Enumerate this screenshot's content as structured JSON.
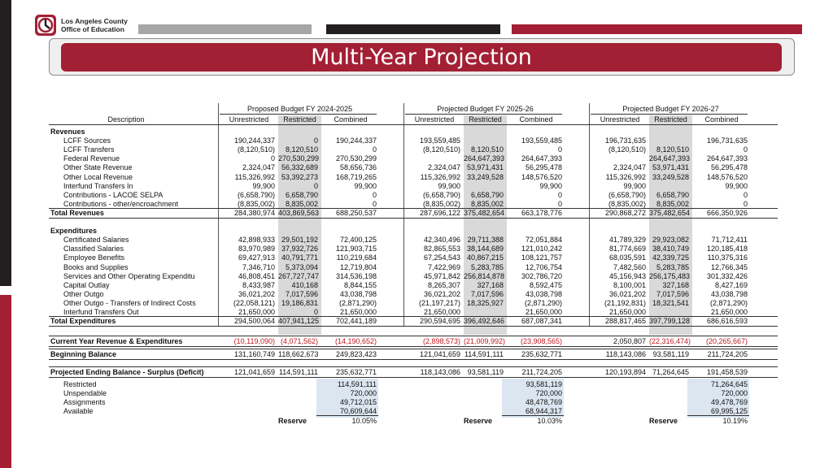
{
  "logo": {
    "line1": "Los Angeles County",
    "line2": "Office of Education"
  },
  "title": "Multi-Year Projection",
  "colors": {
    "brand_red": "#a31f34",
    "dark": "#231f20",
    "gray": "#a6a6a6",
    "restricted_shade": "#d9d9d9",
    "balance_blue": "#dce6f1",
    "negative_red": "#c0171e"
  },
  "table": {
    "desc_header": "Description",
    "groups": [
      "Proposed Budget FY 2024-2025",
      "Projected Budget FY 2025-26",
      "Projected Budget FY 2026-27"
    ],
    "subheaders": [
      "Unrestricted",
      "Restricted",
      "Combined"
    ],
    "rows": [
      {
        "label": "Revenues",
        "type": "section",
        "vals": [
          "",
          "",
          "",
          "",
          "",
          "",
          "",
          "",
          ""
        ]
      },
      {
        "label": "LCFF Sources",
        "type": "item",
        "vals": [
          "190,244,337",
          "0",
          "190,244,337",
          "193,559,485",
          "",
          "193,559,485",
          "196,731,635",
          "",
          "196,731,635"
        ]
      },
      {
        "label": "LCFF Transfers",
        "type": "item",
        "vals": [
          "(8,120,510)",
          "8,120,510",
          "0",
          "(8,120,510)",
          "8,120,510",
          "0",
          "(8,120,510)",
          "8,120,510",
          "0"
        ]
      },
      {
        "label": "Federal Revenue",
        "type": "item",
        "vals": [
          "0",
          "270,530,299",
          "270,530,299",
          "",
          "264,647,393",
          "264,647,393",
          "",
          "264,647,393",
          "264,647,393"
        ]
      },
      {
        "label": "Other State Revenue",
        "type": "item",
        "vals": [
          "2,324,047",
          "56,332,689",
          "58,656,736",
          "2,324,047",
          "53,971,431",
          "56,295,478",
          "2,324,047",
          "53,971,431",
          "56,295,478"
        ]
      },
      {
        "label": "Other Local Revenue",
        "type": "item",
        "vals": [
          "115,326,992",
          "53,392,273",
          "168,719,265",
          "115,326,992",
          "33,249,528",
          "148,576,520",
          "115,326,992",
          "33,249,528",
          "148,576,520"
        ]
      },
      {
        "label": "Interfund Transfers In",
        "type": "item",
        "vals": [
          "99,900",
          "0",
          "99,900",
          "99,900",
          "",
          "99,900",
          "99,900",
          "",
          "99,900"
        ]
      },
      {
        "label": "Contributions - LACOE SELPA",
        "type": "item",
        "vals": [
          "(6,658,790)",
          "6,658,790",
          "0",
          "(6,658,790)",
          "6,658,790",
          "0",
          "(6,658,790)",
          "6,658,790",
          "0"
        ]
      },
      {
        "label": "Contributions - other/encroachment",
        "type": "item",
        "vals": [
          "(8,835,002)",
          "8,835,002",
          "0",
          "(8,835,002)",
          "8,835,002",
          "0",
          "(8,835,002)",
          "8,835,002",
          "0"
        ]
      },
      {
        "label": "Total Revenues",
        "type": "total",
        "vals": [
          "284,380,974",
          "403,869,563",
          "688,250,537",
          "287,696,122",
          "375,482,654",
          "663,178,776",
          "290,868,272",
          "375,482,654",
          "666,350,926"
        ]
      },
      {
        "label": "",
        "type": "blank",
        "vals": [
          "",
          "",
          "",
          "",
          "",
          "",
          "",
          "",
          ""
        ]
      },
      {
        "label": "Expenditures",
        "type": "section",
        "vals": [
          "",
          "",
          "",
          "",
          "",
          "",
          "",
          "",
          ""
        ]
      },
      {
        "label": "Certificated Salaries",
        "type": "item",
        "vals": [
          "42,898,933",
          "29,501,192",
          "72,400,125",
          "42,340,496",
          "29,711,388",
          "72,051,884",
          "41,789,329",
          "29,923,082",
          "71,712,411"
        ]
      },
      {
        "label": "Classified Salaries",
        "type": "item",
        "vals": [
          "83,970,989",
          "37,932,726",
          "121,903,715",
          "82,865,553",
          "38,144,689",
          "121,010,242",
          "81,774,669",
          "38,410,749",
          "120,185,418"
        ]
      },
      {
        "label": "Employee Benefits",
        "type": "item",
        "vals": [
          "69,427,913",
          "40,791,771",
          "110,219,684",
          "67,254,543",
          "40,867,215",
          "108,121,757",
          "68,035,591",
          "42,339,725",
          "110,375,316"
        ]
      },
      {
        "label": "Books and Supplies",
        "type": "item",
        "vals": [
          "7,346,710",
          "5,373,094",
          "12,719,804",
          "7,422,969",
          "5,283,785",
          "12,706,754",
          "7,482,560",
          "5,283,785",
          "12,766,345"
        ]
      },
      {
        "label": "Services and Other Operating Expenditu",
        "type": "item",
        "vals": [
          "46,808,451",
          "267,727,747",
          "314,536,198",
          "45,971,842",
          "256,814,878",
          "302,786,720",
          "45,156,943",
          "256,175,483",
          "301,332,426"
        ]
      },
      {
        "label": "Capital Outlay",
        "type": "item",
        "vals": [
          "8,433,987",
          "410,168",
          "8,844,155",
          "8,265,307",
          "327,168",
          "8,592,475",
          "8,100,001",
          "327,168",
          "8,427,169"
        ]
      },
      {
        "label": "Other Outgo",
        "type": "item",
        "vals": [
          "36,021,202",
          "7,017,596",
          "43,038,798",
          "36,021,202",
          "7,017,596",
          "43,038,798",
          "36,021,202",
          "7,017,596",
          "43,038,798"
        ]
      },
      {
        "label": "Other Outgo - Transfers of Indirect Costs",
        "type": "item",
        "vals": [
          "(22,058,121)",
          "19,186,831",
          "(2,871,290)",
          "(21,197,217)",
          "18,325,927",
          "(2,871,290)",
          "(21,192,831)",
          "18,321,541",
          "(2,871,290)"
        ]
      },
      {
        "label": "Interfund Transfers Out",
        "type": "item",
        "vals": [
          "21,650,000",
          "0",
          "21,650,000",
          "21,650,000",
          "",
          "21,650,000",
          "21,650,000",
          "",
          "21,650,000"
        ]
      },
      {
        "label": "Total Expenditures",
        "type": "total",
        "vals": [
          "294,500,064",
          "407,941,125",
          "702,441,189",
          "290,594,695",
          "396,492,646",
          "687,087,341",
          "288,817,465",
          "397,799,128",
          "686,616,593"
        ]
      }
    ],
    "current_year": {
      "label": "Current Year Revenue & Expenditures",
      "vals": [
        "(10,119,090)",
        "(4,071,562)",
        "(14,190,652)",
        "(2,898,573)",
        "(21,009,992)",
        "(23,908,565)",
        "2,050,807",
        "(22,316,474)",
        "(20,265,667)"
      ]
    },
    "beginning": {
      "label": "Beginning Balance",
      "vals": [
        "131,160,749",
        "118,662,673",
        "249,823,423",
        "121,041,659",
        "114,591,111",
        "235,632,771",
        "118,143,086",
        "93,581,119",
        "211,724,205"
      ]
    },
    "ending": {
      "label": "Projected Ending Balance - Surplus (Deficit)",
      "vals": [
        "121,041,659",
        "114,591,111",
        "235,632,771",
        "118,143,086",
        "93,581,119",
        "211,724,205",
        "120,193,894",
        "71,264,645",
        "191,458,539"
      ]
    },
    "components": {
      "labels": [
        "Restricted",
        "Unspendable",
        "Assignments",
        "Available"
      ],
      "values": [
        [
          "114,591,111",
          "720,000",
          "49,712,015",
          "70,609,644"
        ],
        [
          "93,581,119",
          "720,000",
          "48,478,769",
          "68,944,317"
        ],
        [
          "71,264,645",
          "720,000",
          "49,478,769",
          "69,995,125"
        ]
      ],
      "reserve_label": "Reserve",
      "reserve_pcts": [
        "10.05%",
        "10.03%",
        "10.19%"
      ]
    }
  }
}
